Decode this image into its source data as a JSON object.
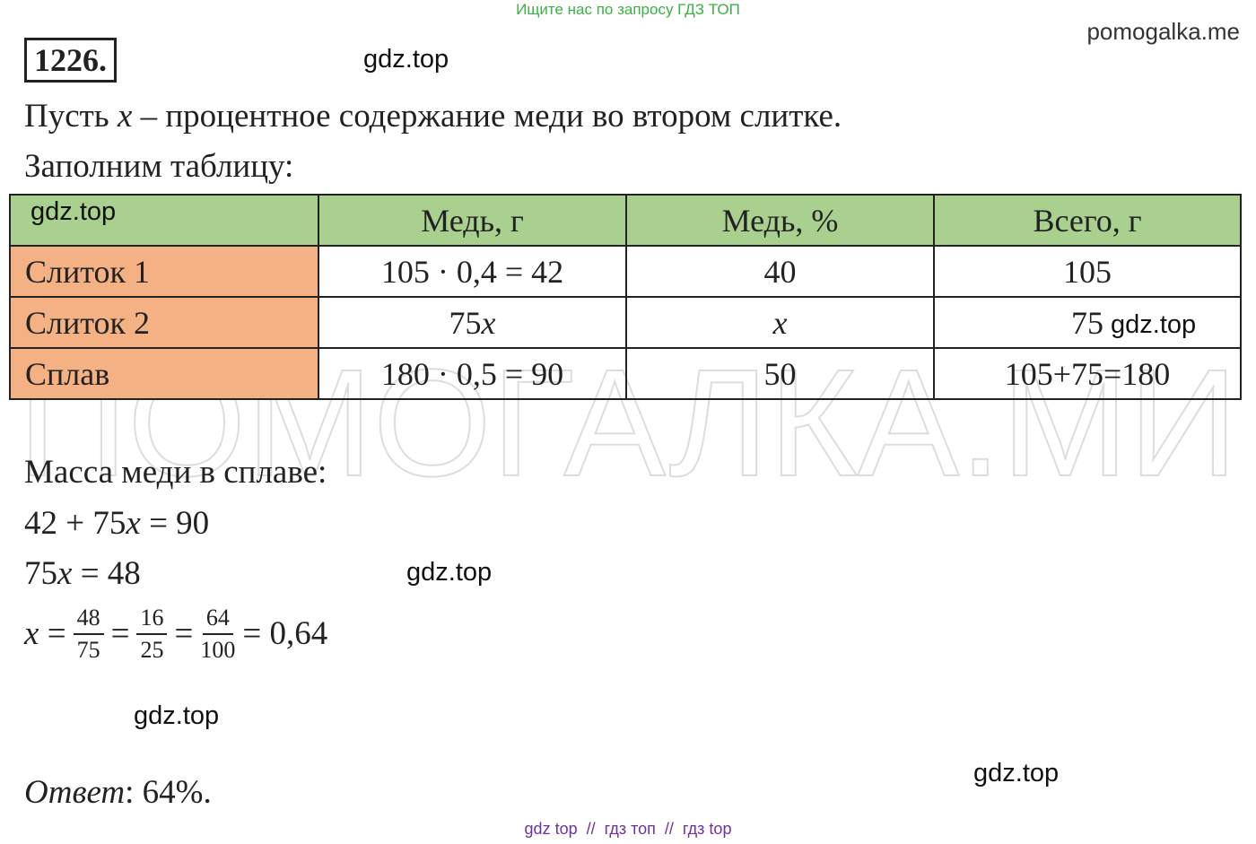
{
  "banner": "Ищите нас по запросу ГДЗ ТОП",
  "site": "pomogalka.me",
  "number": "1226.",
  "watermark": "ПОМОГАЛКА.МИ",
  "stamps": [
    "gdz.top",
    "gdz.top",
    "gdz.top",
    "gdz.top",
    "gdz.top",
    "gdz.top"
  ],
  "intro": [
    "Пусть ",
    "x",
    " – процентное содержание меди во втором слитке."
  ],
  "fill_table": "Заполним таблицу:",
  "table": {
    "header": [
      "Медь, г",
      "Медь, %",
      "Всего, г"
    ],
    "rows": [
      [
        "Слиток 1",
        "105 · 0,4 = 42",
        40,
        105
      ],
      [
        "Слиток 2",
        "75x",
        "x",
        75
      ],
      [
        "Сплав",
        "180 · 0,5 = 90",
        50,
        "105+75=180"
      ]
    ]
  },
  "mass_label": "Масса меди в сплаве:",
  "equations": [
    "42 + 75x = 90",
    "75x = 48"
  ],
  "solution": {
    "lhs": "x",
    "eq": "=",
    "fractions": [
      [
        "48",
        "75"
      ],
      [
        "16",
        "25"
      ],
      [
        "64",
        "100"
      ]
    ],
    "result": "0,64"
  },
  "answer": {
    "label": "Ответ",
    "text": ": 64%."
  },
  "footer": "gdz top  //  гдз топ  //  гдз top"
}
